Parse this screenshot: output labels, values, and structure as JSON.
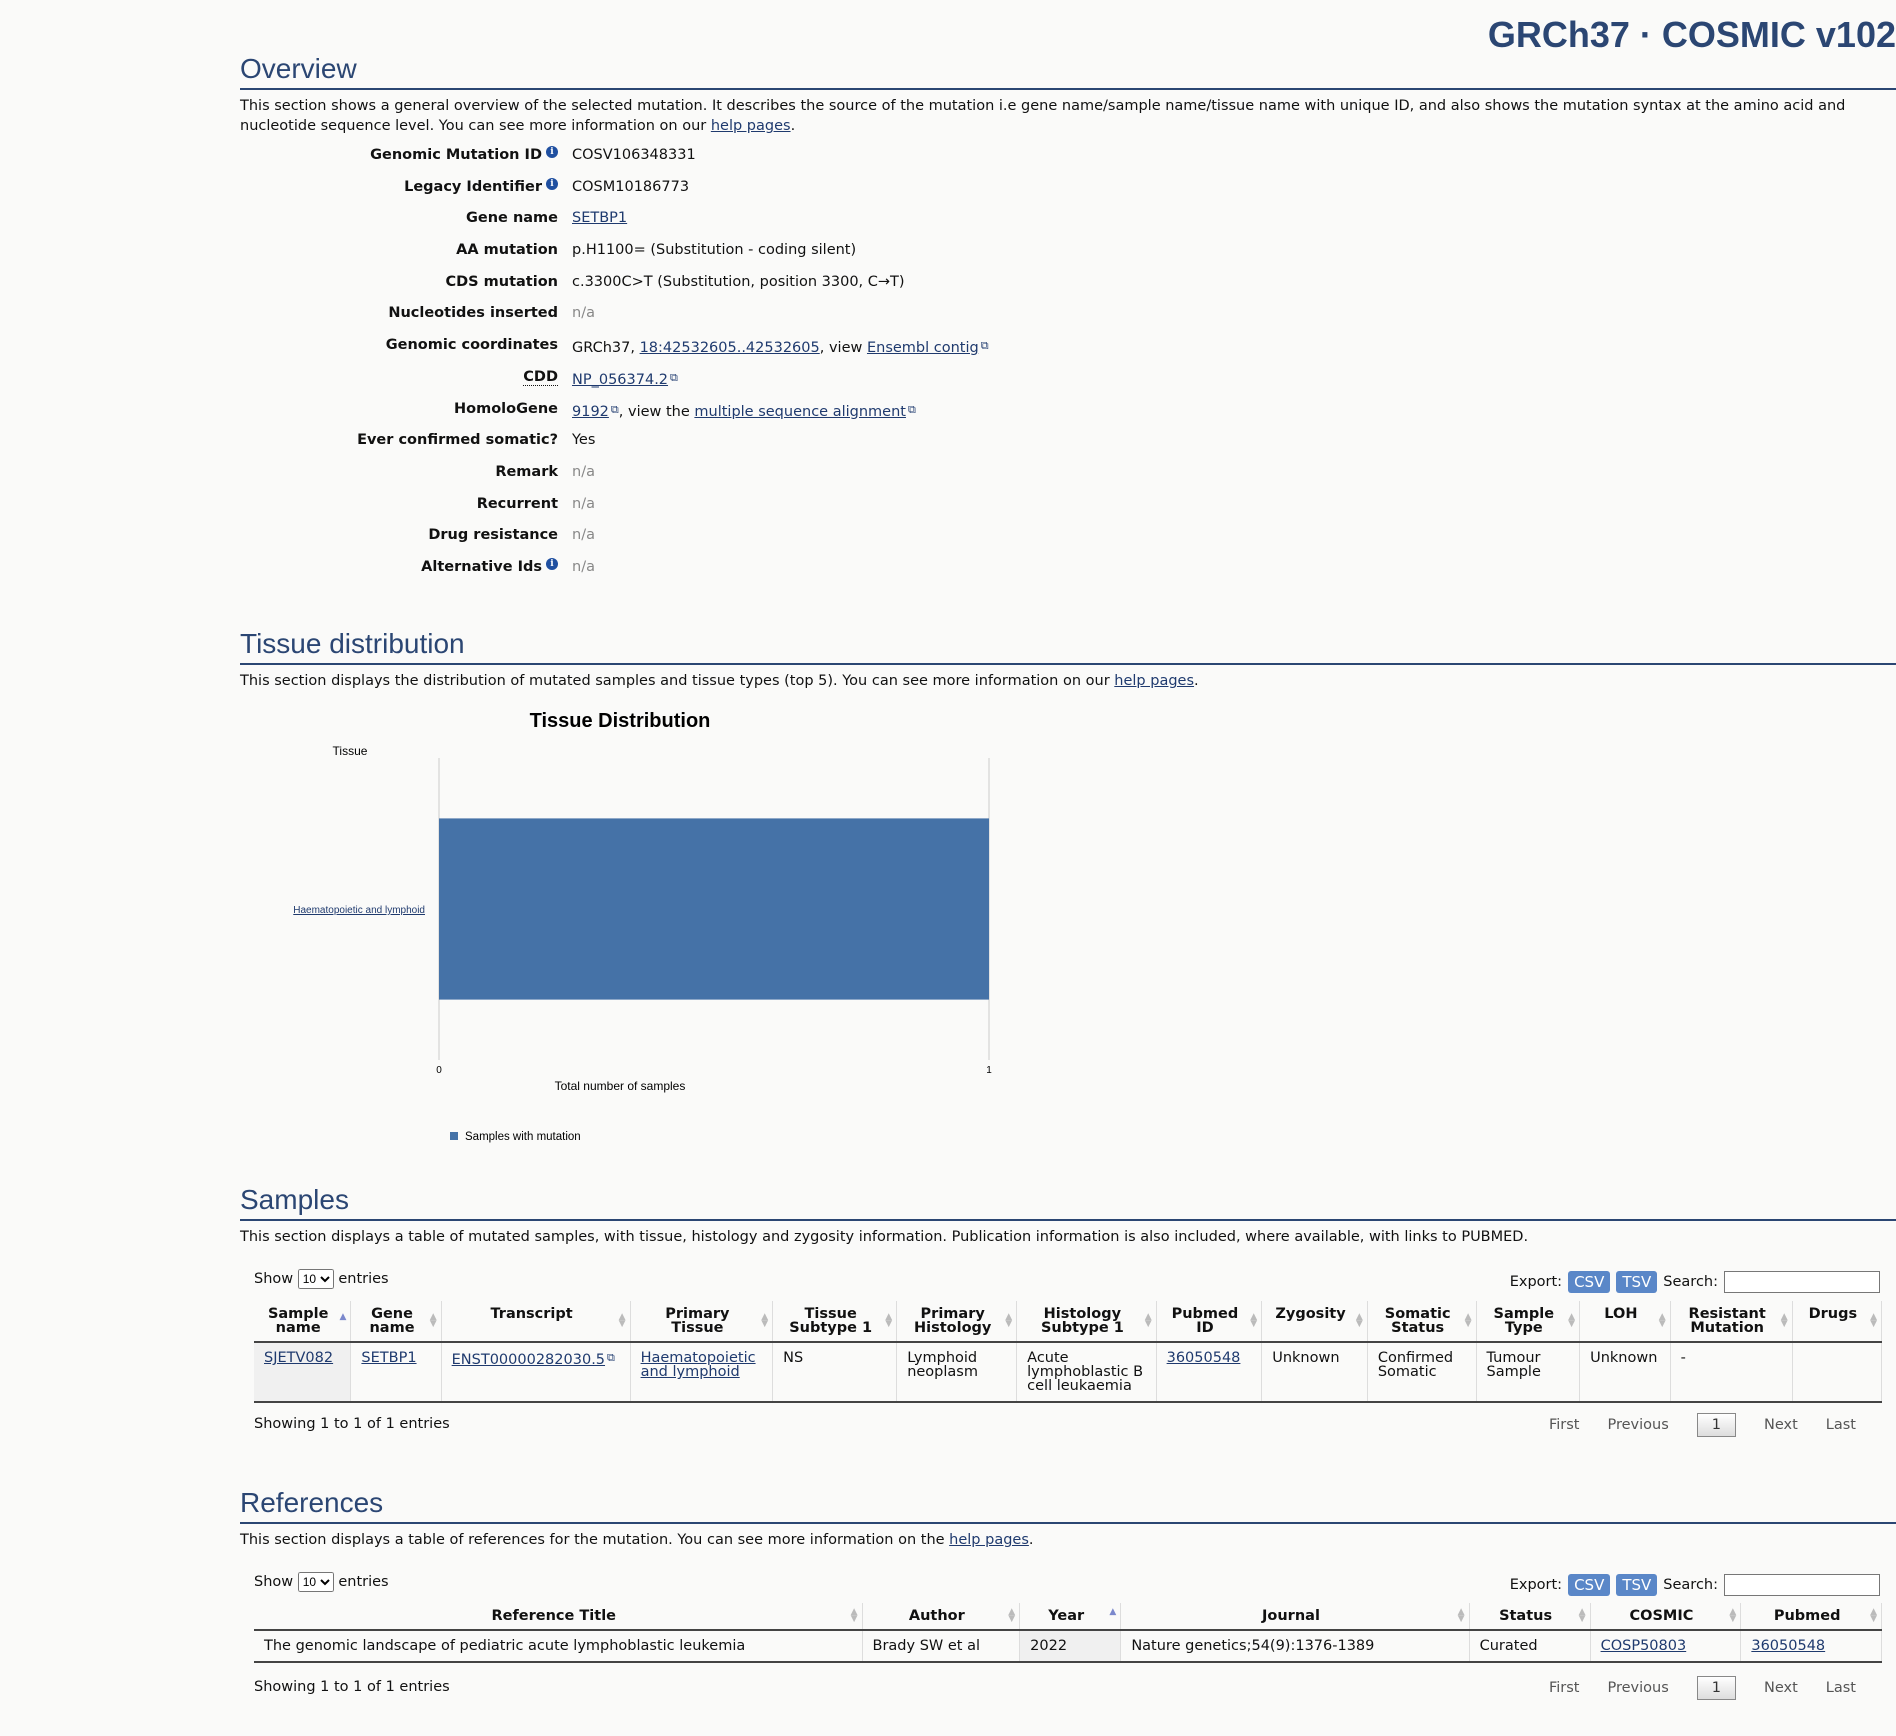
{
  "brand": "GRCh37 · COSMIC v102",
  "overview": {
    "title": "Overview",
    "desc_pre": "This section shows a general overview of the selected mutation. It describes the source of the mutation i.e gene name/sample name/tissue name with unique ID, and also shows the mutation syntax at the amino acid and nucleotide sequence level. You can see more information on our ",
    "help_link": "help pages",
    "desc_post": ".",
    "rows": {
      "genomic_id_label": "Genomic Mutation ID",
      "genomic_id": "COSV106348331",
      "legacy_label": "Legacy Identifier",
      "legacy": "COSM10186773",
      "gene_label": "Gene name",
      "gene": "SETBP1",
      "aa_label": "AA mutation",
      "aa": "p.H1100= (Substitution - coding silent)",
      "cds_label": "CDS mutation",
      "cds": "c.3300C>T (Substitution, position 3300, C→T)",
      "nuc_label": "Nucleotides inserted",
      "nuc": "n/a",
      "coord_label": "Genomic coordinates",
      "coord_pre": "GRCh37, ",
      "coord_link": "18:42532605..42532605",
      "coord_mid": ", view ",
      "coord_link2": "Ensembl contig",
      "cdd_label": "CDD",
      "cdd": "NP_056374.2",
      "homolo_label": "HomoloGene",
      "homolo": "9192",
      "homolo_mid": ", view the ",
      "homolo_link2": "multiple sequence alignment",
      "somatic_label": "Ever confirmed somatic?",
      "somatic": "Yes",
      "remark_label": "Remark",
      "remark": "n/a",
      "recurrent_label": "Recurrent",
      "recurrent": "n/a",
      "drug_label": "Drug resistance",
      "drug": "n/a",
      "alt_label": "Alternative Ids",
      "alt": "n/a"
    }
  },
  "tissue": {
    "title": "Tissue distribution",
    "desc_pre": "This section displays the distribution of mutated samples and tissue types (top 5). You can see more information on our ",
    "help_link": "help pages",
    "desc_post": "."
  },
  "chart_data": {
    "type": "bar",
    "orientation": "horizontal",
    "title": "Tissue Distribution",
    "ylabel": "Tissue",
    "xlabel": "Total number of samples",
    "categories": [
      "Haematopoietic and lymphoid"
    ],
    "series": [
      {
        "name": "Samples with mutation",
        "values": [
          1
        ],
        "color": "#4572a7"
      }
    ],
    "xlim": [
      0,
      1
    ],
    "xticks": [
      "0",
      "1"
    ],
    "legend": "bottom-left"
  },
  "samples": {
    "title": "Samples",
    "desc": "This section displays a table of mutated samples, with tissue, histology and zygosity information. Publication information is also included, where available, with links to PUBMED.",
    "show": "Show",
    "entries": "entries",
    "page_size": "10",
    "export": "Export:",
    "csv": "CSV",
    "tsv": "TSV",
    "search": "Search:",
    "headers": [
      "Sample name",
      "Gene name",
      "Transcript",
      "Primary Tissue",
      "Tissue Subtype 1",
      "Primary Histology",
      "Histology Subtype 1",
      "Pubmed ID",
      "Zygosity",
      "Somatic Status",
      "Sample Type",
      "LOH",
      "Resistant Mutation",
      "Drugs"
    ],
    "row": [
      "SJETV082",
      "SETBP1",
      "ENST00000282030.5",
      "Haematopoietic and lymphoid",
      "NS",
      "Lymphoid neoplasm",
      "Acute lymphoblastic B cell leukaemia",
      "36050548",
      "Unknown",
      "Confirmed Somatic",
      "Tumour Sample",
      "Unknown",
      "-",
      ""
    ],
    "showing": "Showing 1 to 1 of 1 entries",
    "pager": {
      "first": "First",
      "prev": "Previous",
      "page": "1",
      "next": "Next",
      "last": "Last"
    }
  },
  "references": {
    "title": "References",
    "desc_pre": "This section displays a table of references for the mutation. You can see more information on the ",
    "help_link": "help pages",
    "desc_post": ".",
    "show": "Show",
    "entries": "entries",
    "page_size": "10",
    "export": "Export:",
    "csv": "CSV",
    "tsv": "TSV",
    "search": "Search:",
    "headers": [
      "Reference Title",
      "Author",
      "Year",
      "Journal",
      "Status",
      "COSMIC",
      "Pubmed"
    ],
    "row": [
      "The genomic landscape of pediatric acute lymphoblastic leukemia",
      "Brady SW et al",
      "2022",
      "Nature genetics;54(9):1376-1389",
      "Curated",
      "COSP50803",
      "36050548"
    ],
    "showing": "Showing 1 to 1 of 1 entries",
    "pager": {
      "first": "First",
      "prev": "Previous",
      "page": "1",
      "next": "Next",
      "last": "Last"
    }
  }
}
